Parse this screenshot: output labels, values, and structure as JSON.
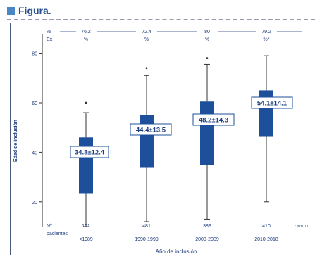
{
  "header": {
    "title": "Figura."
  },
  "chart_data": {
    "type": "box",
    "ylabel": "Edad de inclusión",
    "xlabel": "Año de inclusión",
    "ylim": [
      10,
      85
    ],
    "yticks": [
      20,
      40,
      60,
      80
    ],
    "ytick_labels": [
      "20",
      "40",
      "60",
      "80"
    ],
    "categories": [
      "<1989",
      "1990-1999",
      "2000-2009",
      "2010-2018"
    ],
    "top_row_labels": [
      "%",
      "Ex"
    ],
    "top_row_values": [
      {
        "percent": "76.2",
        "pct_symbol": "%"
      },
      {
        "percent": "72.4",
        "pct_symbol": "%"
      },
      {
        "percent": "80",
        "pct_symbol": "%"
      },
      {
        "percent": "79.2",
        "pct_symbol": "%*"
      }
    ],
    "boxes": [
      {
        "category": "<1989",
        "min": 10,
        "q1": 23.5,
        "median": 34.8,
        "q3": 46,
        "max": 56,
        "outliers": [
          60
        ],
        "label": "34.8±12.4"
      },
      {
        "category": "1990-1999",
        "min": 12,
        "q1": 34,
        "median": 44.4,
        "q3": 55,
        "max": 71,
        "outliers": [
          74
        ],
        "label": "44.4±13.5"
      },
      {
        "category": "2000-2009",
        "min": 13,
        "q1": 35,
        "median": 48.2,
        "q3": 60.5,
        "max": 75.5,
        "outliers": [
          78
        ],
        "label": "48.2±14.3"
      },
      {
        "category": "2010-2018",
        "min": 20,
        "q1": 46.5,
        "median": 54.1,
        "q3": 65,
        "max": 79,
        "outliers": [],
        "label": "54.1±14.1"
      }
    ],
    "n_row_label_1": "Nº",
    "n_row_label_2": "pacientes",
    "n_values": [
      "101",
      "481",
      "389",
      "410"
    ],
    "footnote": "* p<0.00",
    "box_color": "#1d4f9a"
  }
}
